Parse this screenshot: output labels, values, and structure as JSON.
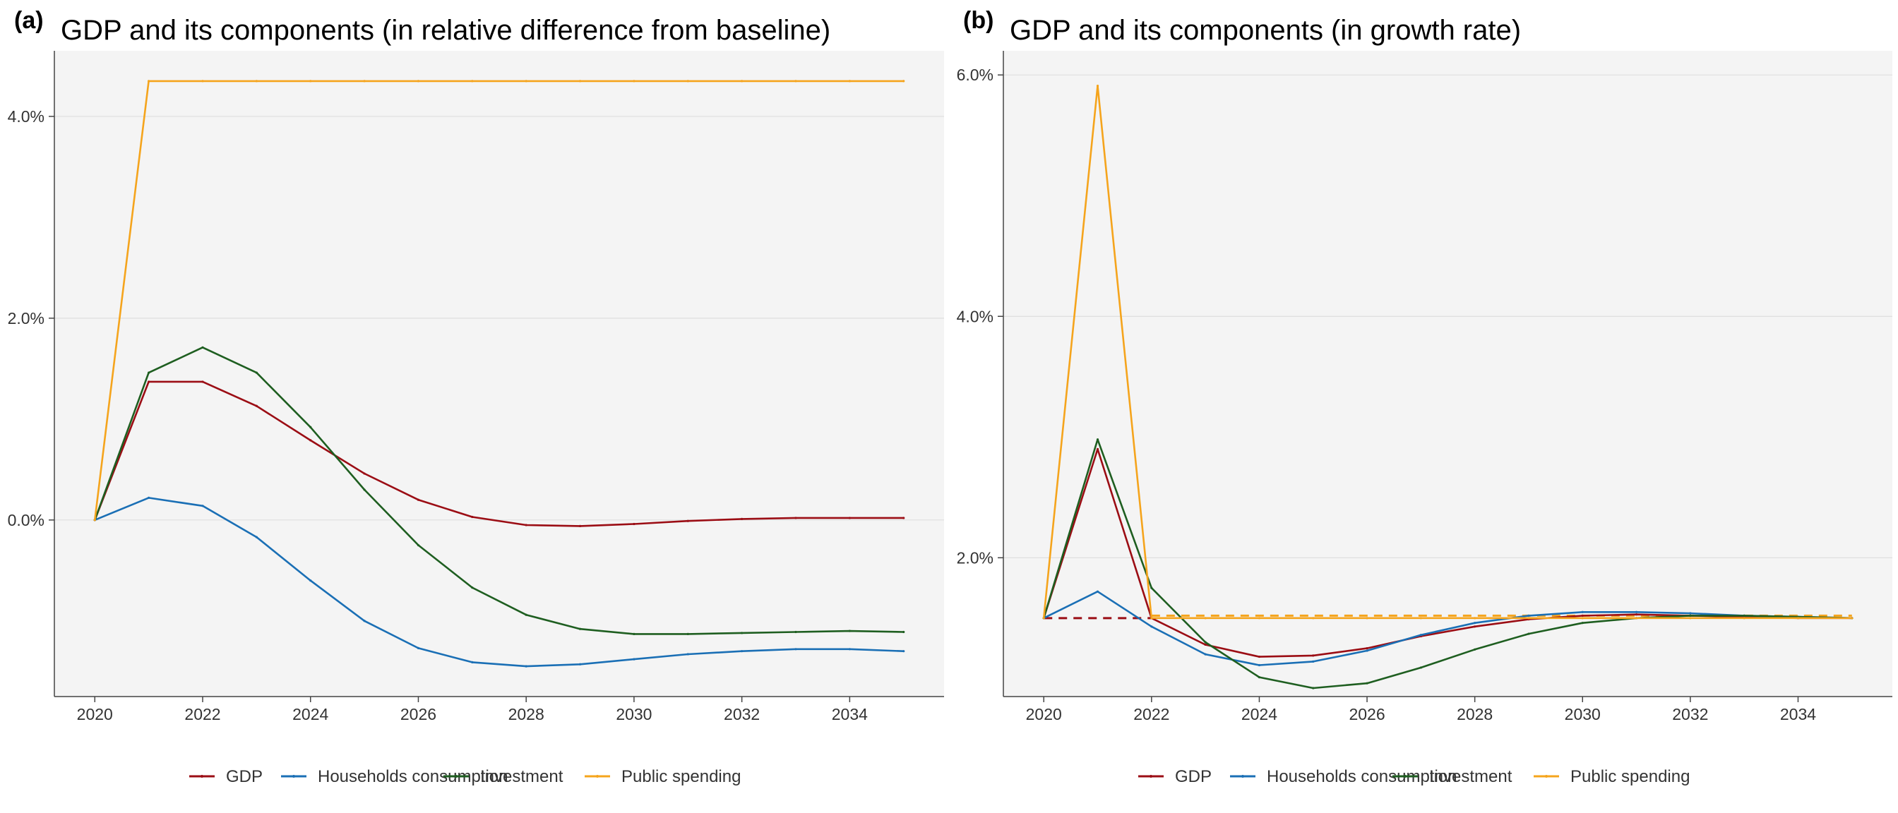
{
  "chart_data": [
    {
      "type": "line",
      "panel_label": "(a)",
      "title": "GDP and its components (in relative difference from baseline)",
      "xlabel": "",
      "ylabel": "",
      "xlim": [
        2019.25,
        2035.75
      ],
      "ylim": [
        -0.0175,
        0.0465
      ],
      "x_ticks": [
        2020,
        2022,
        2024,
        2026,
        2028,
        2030,
        2032,
        2034
      ],
      "x_tick_labels": [
        "2020",
        "2022",
        "2024",
        "2026",
        "2028",
        "2030",
        "2032",
        "2034"
      ],
      "y_ticks": [
        0.0,
        0.02,
        0.04
      ],
      "y_tick_labels": [
        "0.0%",
        "2.0%",
        "4.0%"
      ],
      "grid": "horizontal",
      "legend_position": "bottom",
      "x": [
        2020,
        2021,
        2022,
        2023,
        2024,
        2025,
        2026,
        2027,
        2028,
        2029,
        2030,
        2031,
        2032,
        2033,
        2034,
        2035
      ],
      "series": [
        {
          "name": "GDP",
          "color": "#9b0d14",
          "values": [
            0.0,
            0.0137,
            0.0137,
            0.0113,
            0.0079,
            0.0046,
            0.002,
            0.0003,
            -0.0005,
            -0.0006,
            -0.0004,
            -0.0001,
            0.0001,
            0.0002,
            0.0002,
            0.0002
          ]
        },
        {
          "name": "Households consumption",
          "color": "#1a6fb5",
          "values": [
            0.0,
            0.0022,
            0.0014,
            -0.0017,
            -0.006,
            -0.01,
            -0.0127,
            -0.0141,
            -0.0145,
            -0.0143,
            -0.0138,
            -0.0133,
            -0.013,
            -0.0128,
            -0.0128,
            -0.013
          ]
        },
        {
          "name": "Investment",
          "color": "#1e5e20",
          "values": [
            0.0,
            0.0146,
            0.0171,
            0.0146,
            0.0092,
            0.003,
            -0.0025,
            -0.0067,
            -0.0094,
            -0.0108,
            -0.0113,
            -0.0113,
            -0.0112,
            -0.0111,
            -0.011,
            -0.0111
          ]
        },
        {
          "name": "Public spending",
          "color": "#f5a41c",
          "values": [
            0.0,
            0.0435,
            0.0435,
            0.0435,
            0.0435,
            0.0435,
            0.0435,
            0.0435,
            0.0435,
            0.0435,
            0.0435,
            0.0435,
            0.0435,
            0.0435,
            0.0435,
            0.0435
          ]
        }
      ],
      "reference_lines": []
    },
    {
      "type": "line",
      "panel_label": "(b)",
      "title": "GDP and its components (in growth rate)",
      "xlabel": "",
      "ylabel": "",
      "xlim": [
        2019.25,
        2035.75
      ],
      "ylim": [
        0.0085,
        0.062
      ],
      "x_ticks": [
        2020,
        2022,
        2024,
        2026,
        2028,
        2030,
        2032,
        2034
      ],
      "x_tick_labels": [
        "2020",
        "2022",
        "2024",
        "2026",
        "2028",
        "2030",
        "2032",
        "2034"
      ],
      "y_ticks": [
        0.02,
        0.04,
        0.06
      ],
      "y_tick_labels": [
        "2.0%",
        "4.0%",
        "6.0%"
      ],
      "grid": "horizontal",
      "legend_position": "bottom",
      "x": [
        2020,
        2021,
        2022,
        2023,
        2024,
        2025,
        2026,
        2027,
        2028,
        2029,
        2030,
        2031,
        2032,
        2033,
        2034,
        2035
      ],
      "series": [
        {
          "name": "GDP",
          "color": "#9b0d14",
          "values": [
            0.015,
            0.029,
            0.015,
            0.0128,
            0.0118,
            0.0119,
            0.0125,
            0.0135,
            0.0143,
            0.0149,
            0.0152,
            0.0153,
            0.0152,
            0.0151,
            0.015,
            0.015
          ]
        },
        {
          "name": "Households consumption",
          "color": "#1a6fb5",
          "values": [
            0.015,
            0.0172,
            0.0143,
            0.012,
            0.0111,
            0.0114,
            0.0123,
            0.0136,
            0.0146,
            0.0152,
            0.0155,
            0.0155,
            0.0154,
            0.0152,
            0.0151,
            0.015
          ]
        },
        {
          "name": "Investment",
          "color": "#1e5e20",
          "values": [
            0.015,
            0.0298,
            0.0175,
            0.013,
            0.0101,
            0.0092,
            0.0096,
            0.0109,
            0.0124,
            0.0137,
            0.0146,
            0.015,
            0.0152,
            0.0152,
            0.0151,
            0.015
          ]
        },
        {
          "name": "Public spending",
          "color": "#f5a41c",
          "values": [
            0.015,
            0.0591,
            0.015,
            0.015,
            0.015,
            0.015,
            0.015,
            0.015,
            0.015,
            0.015,
            0.015,
            0.015,
            0.015,
            0.015,
            0.015,
            0.015
          ]
        }
      ],
      "reference_lines": [
        {
          "color": "#9b0d14",
          "style": "dashed",
          "x": [
            2020,
            2022
          ],
          "y": [
            0.015,
            0.015
          ]
        },
        {
          "color": "#f5a41c",
          "style": "dashed",
          "x": [
            2022,
            2035
          ],
          "y": [
            0.0152,
            0.0152
          ]
        }
      ]
    }
  ]
}
